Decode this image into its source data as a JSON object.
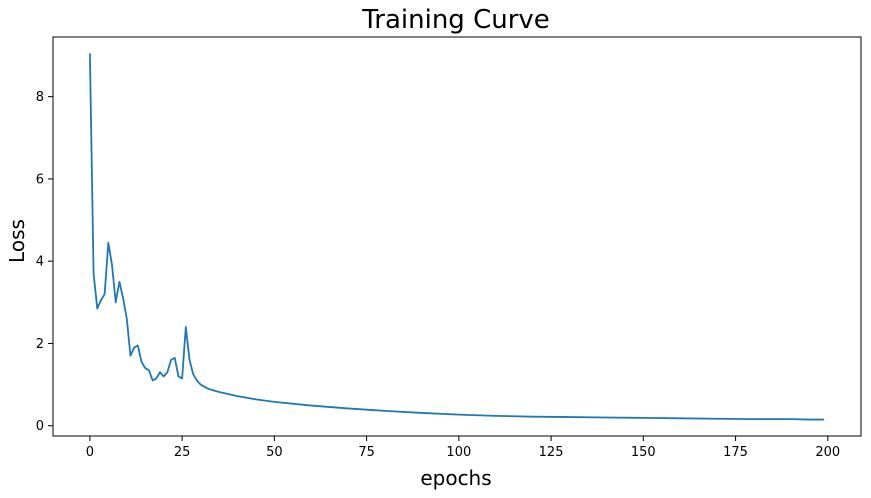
{
  "chart_data": {
    "type": "line",
    "title": "Training Curve",
    "xlabel": "epochs",
    "ylabel": "Loss",
    "xlim": [
      -10,
      209
    ],
    "ylim": [
      -0.25,
      9.45
    ],
    "xticks": [
      0,
      25,
      50,
      75,
      100,
      125,
      150,
      175,
      200
    ],
    "yticks": [
      0,
      2,
      4,
      6,
      8
    ],
    "grid": false,
    "line_color": "#1f77b4",
    "series": [
      {
        "x": [
          0,
          1,
          2,
          3,
          4,
          5,
          6,
          7,
          8,
          9,
          10,
          11,
          12,
          13,
          14,
          15,
          16,
          17,
          18,
          19,
          20,
          21,
          22,
          23,
          24,
          25,
          26,
          27,
          28,
          29,
          30,
          32,
          35,
          40,
          45,
          50,
          60,
          70,
          80,
          90,
          100,
          110,
          120,
          130,
          140,
          150,
          160,
          170,
          180,
          185,
          190,
          195,
          199
        ],
        "values": [
          9.05,
          3.7,
          2.85,
          3.05,
          3.2,
          4.45,
          3.9,
          3.0,
          3.5,
          3.1,
          2.6,
          1.7,
          1.9,
          1.95,
          1.55,
          1.4,
          1.35,
          1.1,
          1.15,
          1.3,
          1.2,
          1.3,
          1.6,
          1.65,
          1.2,
          1.15,
          2.4,
          1.6,
          1.25,
          1.1,
          1.0,
          0.9,
          0.82,
          0.72,
          0.64,
          0.58,
          0.49,
          0.42,
          0.36,
          0.31,
          0.27,
          0.24,
          0.22,
          0.21,
          0.2,
          0.19,
          0.18,
          0.17,
          0.16,
          0.16,
          0.16,
          0.15,
          0.15
        ]
      }
    ]
  }
}
